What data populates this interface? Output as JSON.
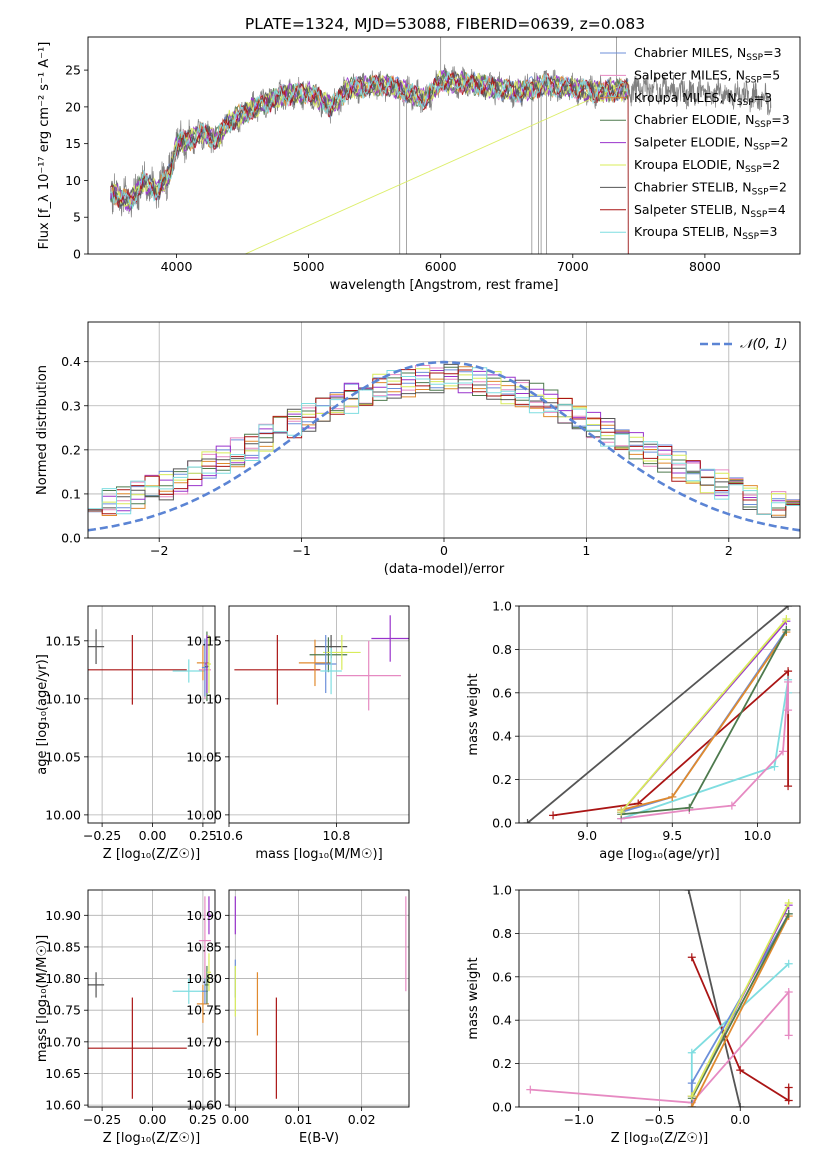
{
  "figure": {
    "title": "PLATE=1324, MJD=53088, FIBERID=0639, z=0.083"
  },
  "colors": {
    "Chabrier MILES": "#6c8fd9",
    "Salpeter MILES": "#e68ac2",
    "Kroupa MILES": "#e08a2e",
    "Chabrier ELODIE": "#4e7a4e",
    "Salpeter ELODIE": "#9933cc",
    "Kroupa ELODIE": "#d8ec5a",
    "Chabrier STELIB": "#555555",
    "Salpeter STELIB": "#aa1515",
    "Kroupa STELIB": "#7fdde0",
    "data": "#808080",
    "grid": "#b0b0b0",
    "normal": "#5b84d4"
  },
  "chart_data": [
    {
      "id": "spectrum",
      "type": "line",
      "xlabel": "wavelength [Angstrom, rest frame]",
      "ylabel": "Flux [f_λ 10⁻¹⁷ erg cm⁻² s⁻¹ A⁻¹]",
      "xlim": [
        3330,
        8720
      ],
      "ylim": [
        0,
        29.5
      ],
      "xticks": [
        4000,
        5000,
        6000,
        7000,
        8000
      ],
      "yticks": [
        0,
        5,
        10,
        15,
        20,
        25
      ],
      "grid": false,
      "legend_position": "top-right",
      "legend": [
        {
          "label": "Chabrier MILES, N",
          "sub": "SSP",
          "suffix": "=3",
          "color": "Chabrier MILES"
        },
        {
          "label": "Salpeter MILES, N",
          "sub": "SSP",
          "suffix": "=5",
          "color": "Salpeter MILES"
        },
        {
          "label": "Kroupa MILES, N",
          "sub": "SSP",
          "suffix": "=3",
          "color": "Kroupa MILES"
        },
        {
          "label": "Chabrier ELODIE, N",
          "sub": "SSP",
          "suffix": "=3",
          "color": "Chabrier ELODIE"
        },
        {
          "label": "Salpeter ELODIE, N",
          "sub": "SSP",
          "suffix": "=2",
          "color": "Salpeter ELODIE"
        },
        {
          "label": "Kroupa ELODIE, N",
          "sub": "SSP",
          "suffix": "=2",
          "color": "Kroupa ELODIE"
        },
        {
          "label": "Chabrier STELIB, N",
          "sub": "SSP",
          "suffix": "=2",
          "color": "Chabrier STELIB"
        },
        {
          "label": "Salpeter STELIB, N",
          "sub": "SSP",
          "suffix": "=4",
          "color": "Salpeter STELIB"
        },
        {
          "label": "Kroupa STELIB, N",
          "sub": "SSP",
          "suffix": "=3",
          "color": "Kroupa STELIB"
        }
      ],
      "continuum": [
        [
          3500,
          8.5
        ],
        [
          3650,
          7.0
        ],
        [
          3750,
          10.0
        ],
        [
          3850,
          8.5
        ],
        [
          3950,
          11.0
        ],
        [
          4000,
          15.0
        ],
        [
          4100,
          15.5
        ],
        [
          4200,
          16.5
        ],
        [
          4300,
          15.5
        ],
        [
          4400,
          18.0
        ],
        [
          4600,
          20.0
        ],
        [
          4800,
          21.5
        ],
        [
          5000,
          22.0
        ],
        [
          5175,
          20.0
        ],
        [
          5300,
          22.5
        ],
        [
          5600,
          23.0
        ],
        [
          5890,
          21.0
        ],
        [
          6000,
          23.5
        ],
        [
          6300,
          23.0
        ],
        [
          6563,
          22.0
        ],
        [
          6800,
          23.0
        ],
        [
          7000,
          22.5
        ],
        [
          7200,
          22.0
        ],
        [
          7500,
          22.5
        ],
        [
          7800,
          22.0
        ],
        [
          8000,
          21.8
        ],
        [
          8300,
          21.5
        ],
        [
          8500,
          21.0
        ]
      ],
      "data_range": [
        3500,
        8500
      ],
      "model_range": [
        3500,
        7420
      ],
      "spikes_down": [
        5690,
        5740,
        6690,
        6740,
        6760,
        6800,
        7420
      ],
      "spikes_up": [
        6000,
        7330
      ]
    },
    {
      "id": "residuals",
      "type": "line",
      "xlabel": "(data-model)/error",
      "ylabel": "Normed distribution",
      "xlim": [
        -2.5,
        2.5
      ],
      "ylim": [
        0,
        0.49
      ],
      "xticks": [
        -2,
        -1,
        0,
        1,
        2
      ],
      "yticks": [
        0.0,
        0.1,
        0.2,
        0.3,
        0.4
      ],
      "grid": true,
      "legend_position": "top-right",
      "normal_label": "𝒩(0, 1)",
      "bin_width": 0.1,
      "bin_start": -2.5
    },
    {
      "id": "age_vs_Z",
      "type": "scatter",
      "xlabel": "Z [log₁₀(Z/Z☉)]",
      "ylabel": "age  [log₁₀(age/yr)]",
      "xlim": [
        -0.32,
        0.31
      ],
      "ylim": [
        9.993,
        10.18
      ],
      "xticks": [
        -0.25,
        0.0,
        0.25
      ],
      "yticks": [
        10.0,
        10.05,
        10.1,
        10.15
      ],
      "grid": true,
      "errorbars": [
        {
          "model": "Chabrier STELIB",
          "x": -0.28,
          "y": 10.145,
          "xerr": 0.04,
          "yerr": 0.015
        },
        {
          "model": "Salpeter STELIB",
          "x": -0.1,
          "y": 10.125,
          "xerr": 0.27,
          "yerr": 0.03
        },
        {
          "model": "Kroupa STELIB",
          "x": 0.18,
          "y": 10.124,
          "xerr": 0.08,
          "yerr": 0.01
        },
        {
          "model": "Kroupa MILES",
          "x": 0.25,
          "y": 10.131,
          "xerr": 0.03,
          "yerr": 0.015
        },
        {
          "model": "Salpeter MILES",
          "x": 0.26,
          "y": 10.125,
          "xerr": 0.03,
          "yerr": 0.025
        },
        {
          "model": "Chabrier MILES",
          "x": 0.26,
          "y": 10.127,
          "xerr": 0.015,
          "yerr": 0.025
        },
        {
          "model": "Chabrier ELODIE",
          "x": 0.27,
          "y": 10.128,
          "xerr": 0.01,
          "yerr": 0.03
        },
        {
          "model": "Salpeter ELODIE",
          "x": 0.27,
          "y": 10.13,
          "xerr": 0.01,
          "yerr": 0.025
        },
        {
          "model": "Kroupa ELODIE",
          "x": 0.28,
          "y": 10.13,
          "xerr": 0.01,
          "yerr": 0.025
        }
      ]
    },
    {
      "id": "age_vs_mass",
      "type": "scatter",
      "xlabel": "mass [log₁₀(M/M☉)]",
      "ylabel": "",
      "xlim": [
        10.6,
        10.935
      ],
      "ylim": [
        9.993,
        10.18
      ],
      "xticks": [
        10.6,
        10.8
      ],
      "yticks": [
        10.0,
        10.05,
        10.1,
        10.15
      ],
      "grid": true,
      "errorbars": [
        {
          "model": "Salpeter STELIB",
          "x": 10.69,
          "y": 10.125,
          "xerr": 0.08,
          "yerr": 0.03
        },
        {
          "model": "Kroupa MILES",
          "x": 10.76,
          "y": 10.131,
          "xerr": 0.03,
          "yerr": 0.02
        },
        {
          "model": "Chabrier STELIB",
          "x": 10.79,
          "y": 10.145,
          "xerr": 0.03,
          "yerr": 0.01
        },
        {
          "model": "Chabrier ELODIE",
          "x": 10.785,
          "y": 10.138,
          "xerr": 0.035,
          "yerr": 0.015
        },
        {
          "model": "Kroupa ELODIE",
          "x": 10.81,
          "y": 10.14,
          "xerr": 0.035,
          "yerr": 0.015
        },
        {
          "model": "Chabrier MILES",
          "x": 10.78,
          "y": 10.13,
          "xerr": 0.02,
          "yerr": 0.025
        },
        {
          "model": "Kroupa STELIB",
          "x": 10.79,
          "y": 10.124,
          "xerr": 0.02,
          "yerr": 0.02
        },
        {
          "model": "Salpeter ELODIE",
          "x": 10.9,
          "y": 10.152,
          "xerr": 0.035,
          "yerr": 0.02
        },
        {
          "model": "Salpeter MILES",
          "x": 10.86,
          "y": 10.12,
          "xerr": 0.06,
          "yerr": 0.03
        }
      ]
    },
    {
      "id": "massweight_vs_age",
      "type": "line",
      "xlabel": "age  [log₁₀(age/yr)]",
      "ylabel": "mass weight",
      "xlim": [
        8.6,
        10.25
      ],
      "ylim": [
        0,
        1.0
      ],
      "xticks": [
        9.0,
        9.5,
        10.0
      ],
      "yticks": [
        0.0,
        0.2,
        0.4,
        0.6,
        0.8,
        1.0
      ],
      "grid": true,
      "series": [
        {
          "model": "Chabrier STELIB",
          "x": [
            8.65,
            10.18
          ],
          "y": [
            0.0,
            1.0
          ]
        },
        {
          "model": "Salpeter STELIB",
          "x": [
            8.8,
            9.3,
            10.18,
            10.18
          ],
          "y": [
            0.035,
            0.09,
            0.7,
            0.17
          ]
        },
        {
          "model": "Kroupa STELIB",
          "x": [
            9.2,
            10.1,
            10.18,
            10.18
          ],
          "y": [
            0.02,
            0.26,
            0.66,
            0.6
          ]
        },
        {
          "model": "Chabrier MILES",
          "x": [
            9.2,
            9.5,
            10.17
          ],
          "y": [
            0.05,
            0.12,
            0.89
          ]
        },
        {
          "model": "Salpeter MILES",
          "x": [
            9.2,
            9.6,
            9.85,
            10.15,
            10.18,
            10.18
          ],
          "y": [
            0.02,
            0.06,
            0.08,
            0.33,
            0.65,
            0.52
          ]
        },
        {
          "model": "Kroupa MILES",
          "x": [
            9.2,
            9.5,
            10.17
          ],
          "y": [
            0.06,
            0.12,
            0.88
          ]
        },
        {
          "model": "Chabrier ELODIE",
          "x": [
            9.2,
            9.6,
            10.17
          ],
          "y": [
            0.04,
            0.07,
            0.89
          ]
        },
        {
          "model": "Salpeter ELODIE",
          "x": [
            9.2,
            10.17
          ],
          "y": [
            0.05,
            0.93
          ]
        },
        {
          "model": "Kroupa ELODIE",
          "x": [
            9.2,
            10.17
          ],
          "y": [
            0.05,
            0.94
          ]
        }
      ]
    },
    {
      "id": "mass_vs_Z",
      "type": "scatter",
      "xlabel": "Z [log₁₀(Z/Z☉)]",
      "ylabel": "mass [log₁₀(M/M☉)]",
      "xlim": [
        -0.32,
        0.31
      ],
      "ylim": [
        10.597,
        10.94
      ],
      "xticks": [
        -0.25,
        0.0,
        0.25
      ],
      "yticks": [
        10.6,
        10.65,
        10.7,
        10.75,
        10.8,
        10.85,
        10.9
      ],
      "grid": true,
      "errorbars": [
        {
          "model": "Chabrier STELIB",
          "x": -0.28,
          "y": 10.79,
          "xerr": 0.04,
          "yerr": 0.02
        },
        {
          "model": "Salpeter STELIB",
          "x": -0.1,
          "y": 10.69,
          "xerr": 0.27,
          "yerr": 0.08
        },
        {
          "model": "Kroupa STELIB",
          "x": 0.18,
          "y": 10.78,
          "xerr": 0.08,
          "yerr": 0.02
        },
        {
          "model": "Kroupa MILES",
          "x": 0.25,
          "y": 10.76,
          "xerr": 0.03,
          "yerr": 0.03
        },
        {
          "model": "Salpeter MILES",
          "x": 0.26,
          "y": 10.86,
          "xerr": 0.03,
          "yerr": 0.07
        },
        {
          "model": "Chabrier MILES",
          "x": 0.26,
          "y": 10.78,
          "xerr": 0.015,
          "yerr": 0.02
        },
        {
          "model": "Chabrier ELODIE",
          "x": 0.27,
          "y": 10.79,
          "xerr": 0.01,
          "yerr": 0.03
        },
        {
          "model": "Salpeter ELODIE",
          "x": 0.28,
          "y": 10.9,
          "xerr": 0.01,
          "yerr": 0.03
        },
        {
          "model": "Kroupa ELODIE",
          "x": 0.28,
          "y": 10.81,
          "xerr": 0.01,
          "yerr": 0.03
        }
      ]
    },
    {
      "id": "mass_vs_EBV",
      "type": "scatter",
      "xlabel": "E(B-V)",
      "ylabel": "",
      "xlim": [
        -0.001,
        0.0275
      ],
      "ylim": [
        10.597,
        10.94
      ],
      "xticks": [
        0.0,
        0.01,
        0.02
      ],
      "xticklabels": [
        "0.00",
        "0.01",
        "0.02"
      ],
      "yticks": [
        10.6,
        10.65,
        10.7,
        10.75,
        10.8,
        10.85,
        10.9
      ],
      "grid": true,
      "errorbars": [
        {
          "model": "Salpeter ELODIE",
          "x": 0.0,
          "y": 10.9,
          "xerr": 0,
          "yerr": 0.03
        },
        {
          "model": "Chabrier MILES",
          "x": 0.0,
          "y": 10.8,
          "xerr": 0,
          "yerr": 0.03
        },
        {
          "model": "Kroupa ELODIE",
          "x": 0.0,
          "y": 10.78,
          "xerr": 0,
          "yerr": 0.04
        },
        {
          "model": "Kroupa MILES",
          "x": 0.0035,
          "y": 10.76,
          "xerr": 0,
          "yerr": 0.05
        },
        {
          "model": "Salpeter STELIB",
          "x": 0.0065,
          "y": 10.69,
          "xerr": 0,
          "yerr": 0.08
        },
        {
          "model": "Salpeter MILES",
          "x": 0.027,
          "y": 10.855,
          "xerr": 0,
          "yerr": 0.075
        }
      ]
    },
    {
      "id": "massweight_vs_Z",
      "type": "line",
      "xlabel": "Z [log₁₀(Z/Z☉)]",
      "ylabel": "mass weight",
      "xlim": [
        -1.37,
        0.37
      ],
      "ylim": [
        0,
        1.0
      ],
      "xticks": [
        -1.0,
        -0.5,
        0.0
      ],
      "yticks": [
        0.0,
        0.2,
        0.4,
        0.6,
        0.8,
        1.0
      ],
      "grid": true,
      "series": [
        {
          "model": "Chabrier STELIB",
          "x": [
            -0.32,
            0.0
          ],
          "y": [
            1.0,
            0.0
          ]
        },
        {
          "model": "Salpeter STELIB",
          "x": [
            -0.3,
            0.0,
            0.3,
            0.3
          ],
          "y": [
            0.69,
            0.17,
            0.03,
            0.09
          ]
        },
        {
          "model": "Kroupa STELIB",
          "x": [
            -0.3,
            -0.3,
            0.3
          ],
          "y": [
            0.0,
            0.25,
            0.66
          ]
        },
        {
          "model": "Salpeter MILES",
          "x": [
            -1.3,
            -0.3,
            0.3,
            0.3
          ],
          "y": [
            0.08,
            0.02,
            0.53,
            0.33
          ]
        },
        {
          "model": "Chabrier MILES",
          "x": [
            -0.3,
            -0.3,
            0.3
          ],
          "y": [
            0.0,
            0.11,
            0.89
          ]
        },
        {
          "model": "Kroupa MILES",
          "x": [
            -0.3,
            0.3
          ],
          "y": [
            0.0,
            0.88
          ]
        },
        {
          "model": "Chabrier ELODIE",
          "x": [
            -0.3,
            0.3
          ],
          "y": [
            0.04,
            0.89
          ]
        },
        {
          "model": "Salpeter ELODIE",
          "x": [
            -0.3,
            0.3
          ],
          "y": [
            0.05,
            0.93
          ]
        },
        {
          "model": "Kroupa ELODIE",
          "x": [
            -0.3,
            0.3
          ],
          "y": [
            0.05,
            0.94
          ]
        }
      ]
    }
  ]
}
